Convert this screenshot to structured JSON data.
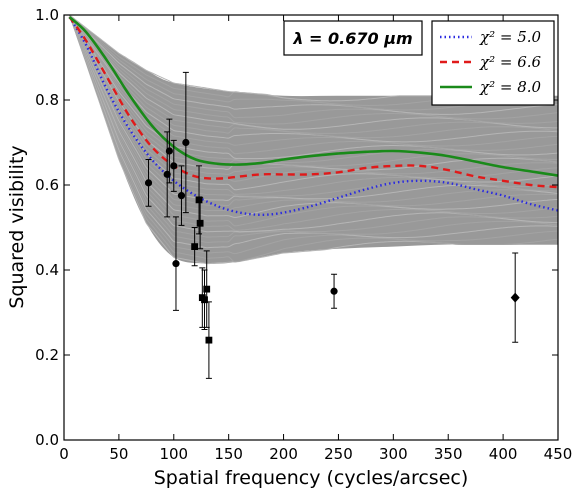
{
  "chart_data": {
    "type": "line",
    "xlabel": "Spatial frequency (cycles/arcsec)",
    "ylabel": "Squared visibility",
    "xlim": [
      0,
      450
    ],
    "ylim": [
      0,
      1.0
    ],
    "xticks": [
      0,
      50,
      100,
      150,
      200,
      250,
      300,
      350,
      400,
      450
    ],
    "yticks": [
      0.0,
      0.2,
      0.4,
      0.6,
      0.8,
      1.0
    ],
    "ytick_labels": [
      "0.0",
      "0.2",
      "0.4",
      "0.6",
      "0.8",
      "1.0"
    ],
    "grid": false,
    "legend_position": "top-right",
    "annotation": "λ = 0.670 μm",
    "model_band": {
      "color": "#999999",
      "upper": {
        "x": [
          5,
          25,
          50,
          75,
          100,
          150,
          200,
          250,
          300,
          350,
          400,
          450
        ],
        "y": [
          1.0,
          0.96,
          0.91,
          0.87,
          0.84,
          0.82,
          0.81,
          0.81,
          0.81,
          0.81,
          0.81,
          0.81
        ]
      },
      "lower": {
        "x": [
          5,
          25,
          50,
          75,
          100,
          130,
          160,
          200,
          250,
          300,
          350,
          400,
          450
        ],
        "y": [
          1.0,
          0.85,
          0.66,
          0.51,
          0.43,
          0.415,
          0.42,
          0.44,
          0.45,
          0.455,
          0.46,
          0.46,
          0.46
        ]
      }
    },
    "series": [
      {
        "name": "χ² = 5.0",
        "legend_label": "χ² = 5.0",
        "color": "#2a2ae0",
        "style": "dotted",
        "x": [
          5,
          20,
          40,
          60,
          80,
          100,
          120,
          140,
          160,
          180,
          200,
          225,
          250,
          275,
          300,
          325,
          350,
          375,
          400,
          425,
          450
        ],
        "y": [
          0.995,
          0.93,
          0.82,
          0.73,
          0.66,
          0.61,
          0.575,
          0.55,
          0.535,
          0.53,
          0.535,
          0.55,
          0.57,
          0.59,
          0.605,
          0.61,
          0.605,
          0.59,
          0.575,
          0.555,
          0.54
        ]
      },
      {
        "name": "χ² = 6.6",
        "legend_label": "χ² = 6.6",
        "color": "#e01a1a",
        "style": "dashed",
        "x": [
          5,
          20,
          40,
          60,
          80,
          100,
          120,
          140,
          160,
          180,
          200,
          225,
          250,
          275,
          300,
          325,
          350,
          375,
          400,
          425,
          450
        ],
        "y": [
          0.995,
          0.94,
          0.85,
          0.76,
          0.69,
          0.645,
          0.62,
          0.615,
          0.62,
          0.625,
          0.625,
          0.625,
          0.63,
          0.64,
          0.645,
          0.645,
          0.635,
          0.62,
          0.61,
          0.6,
          0.595
        ]
      },
      {
        "name": "χ² = 8.0",
        "legend_label": "χ² = 8.0",
        "color": "#1a8a1a",
        "style": "solid",
        "x": [
          5,
          20,
          40,
          60,
          80,
          100,
          120,
          140,
          160,
          180,
          200,
          225,
          250,
          275,
          300,
          325,
          350,
          375,
          400,
          425,
          450
        ],
        "y": [
          0.995,
          0.96,
          0.89,
          0.81,
          0.74,
          0.69,
          0.66,
          0.65,
          0.648,
          0.652,
          0.66,
          0.668,
          0.674,
          0.678,
          0.68,
          0.676,
          0.668,
          0.655,
          0.642,
          0.632,
          0.622
        ]
      }
    ],
    "observations": [
      {
        "marker": "circle",
        "points": [
          {
            "x": 77,
            "y": 0.605,
            "err": 0.055
          },
          {
            "x": 94,
            "y": 0.625,
            "err": 0.1
          },
          {
            "x": 96,
            "y": 0.68,
            "err": 0.075
          },
          {
            "x": 100,
            "y": 0.645,
            "err": 0.06
          },
          {
            "x": 102,
            "y": 0.415,
            "err": 0.11
          },
          {
            "x": 107,
            "y": 0.575,
            "err": 0.07
          },
          {
            "x": 111,
            "y": 0.7,
            "err": 0.165
          },
          {
            "x": 246,
            "y": 0.35,
            "err": 0.04
          }
        ]
      },
      {
        "marker": "square",
        "points": [
          {
            "x": 119,
            "y": 0.455,
            "err": 0.045
          },
          {
            "x": 123,
            "y": 0.565,
            "err": 0.08
          },
          {
            "x": 124,
            "y": 0.51,
            "err": 0.06
          },
          {
            "x": 126,
            "y": 0.335,
            "err": 0.07
          },
          {
            "x": 128,
            "y": 0.33,
            "err": 0.07
          },
          {
            "x": 130,
            "y": 0.355,
            "err": 0.09
          },
          {
            "x": 132,
            "y": 0.235,
            "err": 0.09
          }
        ]
      },
      {
        "marker": "diamond",
        "points": [
          {
            "x": 411,
            "y": 0.335,
            "err": 0.105
          }
        ]
      }
    ]
  }
}
